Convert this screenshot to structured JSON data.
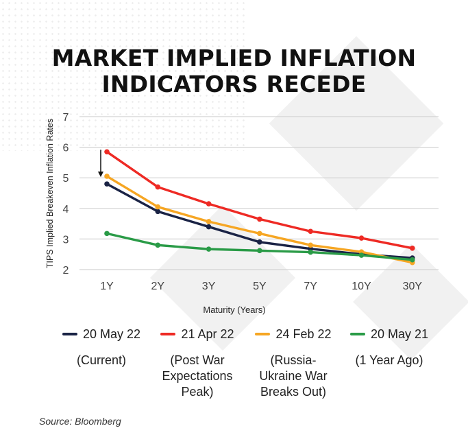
{
  "title_lines": [
    "MARKET IMPLIED INFLATION",
    "INDICATORS RECEDE"
  ],
  "source": "Source: Bloomberg",
  "chart_data": {
    "type": "line",
    "title": "MARKET IMPLIED INFLATION INDICATORS RECEDE",
    "xlabel": "Maturity (Years)",
    "ylabel": "TIPS Implied Breakeven Inflation Rates",
    "categories": [
      "1Y",
      "2Y",
      "3Y",
      "5Y",
      "7Y",
      "10Y",
      "30Y"
    ],
    "yticks": [
      "2",
      "3",
      "4",
      "5",
      "6",
      "7"
    ],
    "ylim": [
      2,
      7
    ],
    "grid": "horizontal",
    "legend_position": "bottom",
    "annotation": "down-arrow at 1Y from 21 Apr 22 to 20 May 22",
    "series": [
      {
        "name": "20 May 22",
        "note": "(Current)",
        "color": "#1a2345",
        "values": [
          4.8,
          3.9,
          3.4,
          2.9,
          2.68,
          2.5,
          2.38
        ]
      },
      {
        "name": "21 Apr 22",
        "note": "(Post War Expectations Peak)",
        "color": "#ee2a24",
        "values": [
          5.85,
          4.7,
          4.15,
          3.65,
          3.25,
          3.03,
          2.7
        ]
      },
      {
        "name": "24 Feb 22",
        "note": "(Russia-Ukraine War Breaks Out)",
        "color": "#f6a623",
        "values": [
          5.05,
          4.05,
          3.57,
          3.18,
          2.8,
          2.58,
          2.23
        ]
      },
      {
        "name": "20 May 21",
        "note": "(1 Year Ago)",
        "color": "#2a9b47",
        "values": [
          3.18,
          2.8,
          2.67,
          2.62,
          2.57,
          2.47,
          2.32
        ]
      }
    ]
  }
}
